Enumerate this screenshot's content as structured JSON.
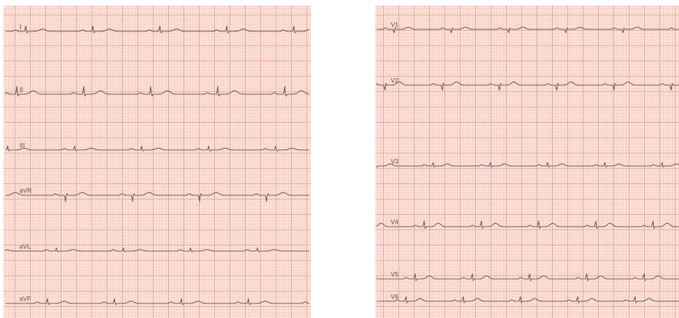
{
  "panels": [
    {
      "leads": [
        "I",
        "II",
        "III",
        "aVR",
        "aVL",
        "aVF"
      ]
    },
    {
      "leads": [
        "V1",
        "V2",
        "V3",
        "V4",
        "V5",
        "V6"
      ]
    }
  ]
}
